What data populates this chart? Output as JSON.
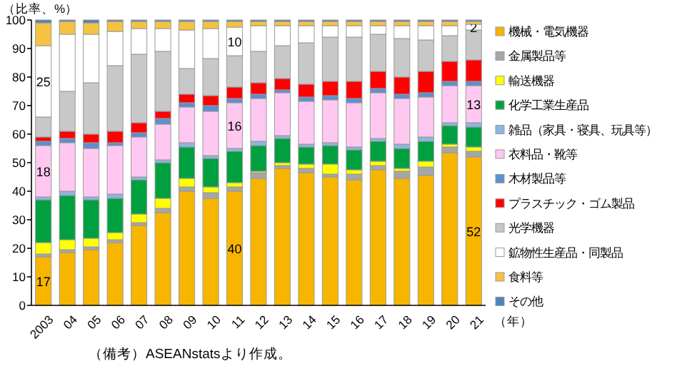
{
  "chart_data": {
    "type": "bar",
    "stacked": true,
    "ylabel": "（比率、%）",
    "xlabel": "（年）",
    "categories": [
      "2003",
      "04",
      "05",
      "06",
      "07",
      "08",
      "09",
      "10",
      "11",
      "12",
      "13",
      "14",
      "15",
      "16",
      "17",
      "18",
      "19",
      "20",
      "21"
    ],
    "ylim": [
      0,
      100
    ],
    "yticks": [
      0,
      10,
      20,
      30,
      40,
      50,
      60,
      70,
      80,
      90,
      100
    ],
    "grid": false,
    "legend": "right",
    "annotations": [
      "（備考）ASEANstatsより作成。"
    ],
    "series": [
      {
        "name": "機械・電気機器",
        "color": "#f7b500",
        "values": [
          17,
          18.5,
          19.5,
          22,
          28,
          32.5,
          40,
          37.5,
          40,
          44.5,
          48,
          46.5,
          45,
          44,
          47.5,
          44.5,
          45.5,
          53.5,
          52
        ],
        "value_labels": [
          "17",
          null,
          null,
          null,
          null,
          null,
          null,
          null,
          "40",
          null,
          null,
          null,
          null,
          null,
          null,
          null,
          null,
          null,
          "52"
        ]
      },
      {
        "name": "金属製品等",
        "color": "#a6a6a6",
        "values": [
          1,
          1,
          1,
          1,
          1,
          1.5,
          1.5,
          2,
          1.5,
          2,
          1,
          1.5,
          1,
          2,
          1.5,
          2.5,
          3,
          2,
          2
        ]
      },
      {
        "name": "輸送機器",
        "color": "#ffff00",
        "values": [
          4,
          3.5,
          3,
          2.5,
          3,
          3.5,
          3,
          2,
          1.5,
          0.5,
          1,
          1.5,
          3.5,
          1.5,
          1.5,
          1,
          2,
          1,
          1.5
        ]
      },
      {
        "name": "化学工業生産品",
        "color": "#00a040",
        "values": [
          15,
          15.5,
          13.5,
          12,
          12,
          12.5,
          11,
          10,
          11,
          9,
          8.5,
          6,
          6.5,
          7,
          7,
          7,
          7,
          6.5,
          7
        ]
      },
      {
        "name": "雑品（家具・寝具、玩具等）",
        "color": "#8db4e2",
        "values": [
          1,
          1.5,
          1,
          1.5,
          1,
          1,
          1.5,
          1,
          1,
          1.5,
          1,
          1,
          1,
          1,
          1,
          1.5,
          1.5,
          1,
          1.5
        ]
      },
      {
        "name": "衣料品・靴等",
        "color": "#ffc8f0",
        "values": [
          18,
          17,
          17,
          17,
          14,
          12.5,
          12.5,
          15.5,
          16,
          15,
          15,
          15,
          15,
          15.5,
          16,
          16,
          14,
          13,
          13
        ],
        "value_labels": [
          "18",
          null,
          null,
          null,
          null,
          null,
          null,
          null,
          "16",
          null,
          null,
          null,
          null,
          null,
          null,
          null,
          null,
          null,
          "13"
        ]
      },
      {
        "name": "木材製品等",
        "color": "#5b8fd0",
        "values": [
          1.5,
          1.5,
          2,
          1,
          1.5,
          2,
          1.5,
          2,
          1.5,
          1.5,
          1,
          1.5,
          1.5,
          1.5,
          1.5,
          1.5,
          1.5,
          1.5,
          1.5
        ]
      },
      {
        "name": "プラスチック・ゴム製品",
        "color": "#ff0000",
        "values": [
          1.5,
          2.5,
          3,
          4,
          3.5,
          2.5,
          3,
          3.5,
          4,
          4,
          4,
          4.5,
          5,
          6,
          6,
          6,
          7.5,
          7,
          7.5
        ]
      },
      {
        "name": "光学機器",
        "color": "#c8c8c8",
        "values": [
          7,
          14,
          18,
          23,
          24,
          21,
          9,
          13,
          11,
          11,
          11.5,
          14.5,
          15.5,
          15.5,
          13,
          13.5,
          11,
          9,
          10.5
        ]
      },
      {
        "name": "鉱物性生産品・同製品",
        "color": "#ffffff",
        "values": [
          25,
          20,
          17,
          12,
          9,
          8,
          13.5,
          10.5,
          10,
          9,
          7,
          6,
          4,
          4,
          3,
          4.5,
          5,
          3.5,
          2
        ],
        "value_labels": [
          "25",
          null,
          null,
          null,
          null,
          null,
          null,
          null,
          "10",
          null,
          null,
          null,
          null,
          null,
          null,
          null,
          null,
          null,
          "2"
        ]
      },
      {
        "name": "食料等",
        "color": "#f5c242",
        "values": [
          8,
          4.5,
          4,
          3.5,
          2.5,
          2.5,
          3,
          2.5,
          2,
          1.5,
          1.5,
          1.5,
          1.5,
          1.5,
          1.5,
          1.5,
          1.5,
          1.5,
          1
        ]
      },
      {
        "name": "その他",
        "color": "#4f81bd",
        "values": [
          1,
          0.5,
          1,
          0.5,
          0.5,
          0.5,
          0.5,
          0.5,
          0.5,
          0.5,
          0.5,
          0.5,
          0.5,
          0.5,
          0.5,
          0.5,
          0.5,
          0.5,
          0.5
        ]
      }
    ]
  }
}
